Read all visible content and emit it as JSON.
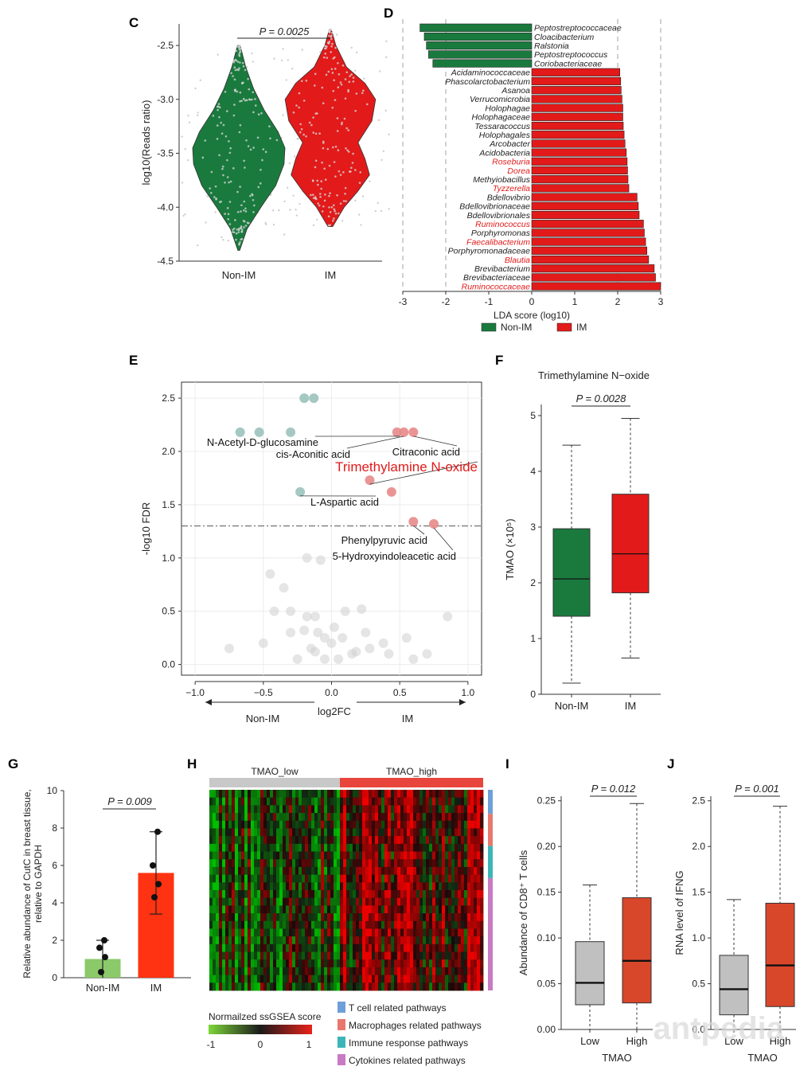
{
  "chart_data": [
    {
      "id": "C",
      "panel": "C",
      "type": "violin",
      "ylabel": "log10(Reads ratio)",
      "categories": [
        "Non-IM",
        "IM"
      ],
      "ylim": [
        -4.5,
        -2.3
      ],
      "yticks": [
        -2.5,
        -3.0,
        -3.5,
        -4.0,
        -4.5
      ],
      "ytick_labels": [
        "-2.5",
        "-3.0",
        "-3.5",
        "-4.0",
        "-4.5"
      ],
      "groups": [
        {
          "name": "Non-IM",
          "color": "#1a7a3e",
          "min": -4.4,
          "max": -2.5,
          "profile": [
            [
              -4.4,
              0.02
            ],
            [
              -4.2,
              0.18
            ],
            [
              -4.0,
              0.48
            ],
            [
              -3.8,
              0.8
            ],
            [
              -3.6,
              0.98
            ],
            [
              -3.45,
              1.0
            ],
            [
              -3.3,
              0.85
            ],
            [
              -3.1,
              0.55
            ],
            [
              -2.9,
              0.32
            ],
            [
              -2.7,
              0.15
            ],
            [
              -2.5,
              0.03
            ]
          ]
        },
        {
          "name": "IM",
          "color": "#e21a1a",
          "min": -4.18,
          "max": -2.35,
          "profile": [
            [
              -4.18,
              0.05
            ],
            [
              -4.0,
              0.3
            ],
            [
              -3.85,
              0.6
            ],
            [
              -3.7,
              0.85
            ],
            [
              -3.55,
              0.75
            ],
            [
              -3.4,
              0.6
            ],
            [
              -3.2,
              0.9
            ],
            [
              -3.0,
              0.98
            ],
            [
              -2.85,
              0.75
            ],
            [
              -2.7,
              0.35
            ],
            [
              -2.5,
              0.12
            ],
            [
              -2.35,
              0.02
            ]
          ]
        }
      ],
      "p_label": "P = 0.0025"
    },
    {
      "id": "D",
      "panel": "D",
      "type": "bar",
      "orientation": "horizontal",
      "xlabel": "LDA score (log10)",
      "xlim": [
        -3,
        3
      ],
      "xticks": [
        -3,
        -2,
        -1,
        0,
        1,
        2,
        3
      ],
      "categories": [
        "Peptostreptococcaceae",
        "Cloacibacterium",
        "Ralstonia",
        "Peptostreptococcus",
        "Coriobacteriaceae",
        "Acidaminococcaceae",
        "Phascolarctobacterium",
        "Asanoa",
        "Verrucomicrobia",
        "Holophagae",
        "Holophagaceae",
        "Tessaracoccus",
        "Holophagales",
        "Arcobacter",
        "Acidobacteria",
        "Roseburia",
        "Dorea",
        "Methyiobacillus",
        "Tyzzerella",
        "Bdellovibrio",
        "Bdellovibrionaceae",
        "Bdellovibrionales",
        "Ruminococcus",
        "Porphyromonas",
        "Faecalibacterium",
        "Porphyromonadaceae",
        "Blautia",
        "Brevibacterium",
        "Brevibacteriaceae",
        "Ruminococcaceae"
      ],
      "values": [
        -2.6,
        -2.5,
        -2.45,
        -2.4,
        -2.3,
        2.05,
        2.07,
        2.08,
        2.1,
        2.12,
        2.12,
        2.13,
        2.15,
        2.17,
        2.2,
        2.22,
        2.23,
        2.24,
        2.26,
        2.45,
        2.48,
        2.5,
        2.6,
        2.62,
        2.65,
        2.68,
        2.72,
        2.85,
        2.88,
        3.0
      ],
      "highlight_red_labels": [
        "Roseburia",
        "Dorea",
        "Tyzzerella",
        "Ruminococcus",
        "Faecalibacterium",
        "Blautia",
        "Ruminococcaceae"
      ],
      "legend": [
        {
          "name": "Non-IM",
          "color": "#1a7a3e"
        },
        {
          "name": "IM",
          "color": "#e21a1a"
        }
      ]
    },
    {
      "id": "E",
      "panel": "E",
      "type": "scatter",
      "xlabel": "log2FC",
      "ylabel": "-log10 FDR",
      "xlim": [
        -1.1,
        1.1
      ],
      "ylim": [
        -0.1,
        2.65
      ],
      "xticks": [
        -1.0,
        -0.5,
        0.0,
        0.5,
        1.0
      ],
      "xtick_labels": [
        "−1.0",
        "−0.5",
        "0.0",
        "0.5",
        "1.0"
      ],
      "yticks": [
        0.0,
        0.5,
        1.0,
        1.5,
        2.0,
        2.5
      ],
      "ytick_labels": [
        "0.0",
        "0.5",
        "1.0",
        "1.5",
        "2.0",
        "2.5"
      ],
      "threshold": 1.3,
      "direction_labels": [
        "Non-IM",
        "IM"
      ],
      "blue_points": [
        [
          -0.2,
          2.5
        ],
        [
          -0.13,
          2.5
        ],
        [
          -0.67,
          2.18
        ],
        [
          -0.53,
          2.18
        ],
        [
          -0.3,
          2.18
        ],
        [
          -0.23,
          1.62
        ]
      ],
      "red_points": [
        [
          0.48,
          2.18
        ],
        [
          0.53,
          2.18
        ],
        [
          0.6,
          2.18
        ],
        [
          0.28,
          1.73
        ],
        [
          0.44,
          1.62
        ],
        [
          0.6,
          1.34
        ],
        [
          0.75,
          1.32
        ]
      ],
      "grey_points": [
        [
          -0.18,
          1.0
        ],
        [
          -0.45,
          0.85
        ],
        [
          -0.08,
          0.98
        ],
        [
          -0.35,
          0.72
        ],
        [
          -0.42,
          0.5
        ],
        [
          -0.3,
          0.5
        ],
        [
          -0.18,
          0.45
        ],
        [
          -0.12,
          0.45
        ],
        [
          0.1,
          0.5
        ],
        [
          0.22,
          0.52
        ],
        [
          -0.3,
          0.3
        ],
        [
          -0.2,
          0.32
        ],
        [
          -0.1,
          0.3
        ],
        [
          -0.05,
          0.25
        ],
        [
          0.0,
          0.2
        ],
        [
          0.08,
          0.25
        ],
        [
          0.15,
          0.1
        ],
        [
          0.25,
          0.3
        ],
        [
          0.28,
          0.15
        ],
        [
          -0.5,
          0.2
        ],
        [
          -0.15,
          0.15
        ],
        [
          -0.25,
          0.05
        ],
        [
          -0.05,
          0.05
        ],
        [
          0.05,
          0.05
        ],
        [
          0.42,
          0.1
        ],
        [
          -0.75,
          0.15
        ],
        [
          0.55,
          0.25
        ],
        [
          0.6,
          0.05
        ],
        [
          0.7,
          0.1
        ],
        [
          0.38,
          0.2
        ],
        [
          0.85,
          0.45
        ],
        [
          0.18,
          0.12
        ],
        [
          -0.12,
          0.12
        ],
        [
          0.02,
          0.35
        ]
      ],
      "annotations": [
        {
          "text": "N-Acetyl-D-glucosamine",
          "x": 0.5,
          "y": 2.18,
          "color": "#111"
        },
        {
          "text": "cis-Aconitic acid",
          "x": 0.53,
          "y": 2.18,
          "color": "#111"
        },
        {
          "text": "Citraconic acid",
          "x": 0.6,
          "y": 2.18,
          "color": "#111"
        },
        {
          "text": "Trimethylamine N-oxide",
          "x": 0.28,
          "y": 1.73,
          "color": "#e21a1a"
        },
        {
          "text": "L-Aspartic acid",
          "x": -0.23,
          "y": 1.62,
          "color": "#111"
        },
        {
          "text": "Phenylpyruvic acid",
          "x": 0.6,
          "y": 1.34,
          "color": "#111"
        },
        {
          "text": "5-Hydroxyindoleacetic acid",
          "x": 0.75,
          "y": 1.32,
          "color": "#111"
        }
      ]
    },
    {
      "id": "F",
      "panel": "F",
      "type": "box",
      "title": "Trimethylamine N−oxide",
      "ylabel": "TMAO (×10⁵)",
      "ylim": [
        0,
        5.2
      ],
      "yticks": [
        0,
        1,
        2,
        3,
        4,
        5
      ],
      "ytick_labels": [
        "0",
        "1",
        "2",
        "3",
        "4",
        "5"
      ],
      "categories": [
        "Non-IM",
        "IM"
      ],
      "boxes": [
        {
          "name": "Non-IM",
          "min": 0.2,
          "q1": 1.4,
          "median": 2.07,
          "q3": 2.97,
          "max": 4.47,
          "color": "#1a7a3e"
        },
        {
          "name": "IM",
          "min": 0.65,
          "q1": 1.82,
          "median": 2.52,
          "q3": 3.59,
          "max": 4.95,
          "color": "#e21a1a"
        }
      ],
      "p_label": "P = 0.0028"
    },
    {
      "id": "G",
      "panel": "G",
      "type": "bar",
      "ylabel_line1": "Relative abundance of CutC in breast tissue,",
      "ylabel_line2": "relative to GAPDH",
      "ylim": [
        0,
        10
      ],
      "yticks": [
        0,
        2,
        4,
        6,
        8,
        10
      ],
      "ytick_labels": [
        "0",
        "2",
        "4",
        "6",
        "8",
        "10"
      ],
      "categories": [
        "Non-IM",
        "IM"
      ],
      "values": [
        1.0,
        5.6
      ],
      "errors": [
        1.0,
        2.2
      ],
      "colors": [
        "#8bc96a",
        "#ff3311"
      ],
      "points": [
        [
          0.3,
          1.1,
          1.6,
          2.0
        ],
        [
          4.3,
          5.0,
          6.0,
          7.8
        ]
      ],
      "p_label": "P = 0.009"
    },
    {
      "id": "H",
      "panel": "H",
      "type": "heatmap",
      "groups": [
        "TMAO_low",
        "TMAO_high"
      ],
      "group_colors": [
        "#c8c8c8",
        "#e8453c"
      ],
      "colorbar_title": "Normailzed ssGSEA score",
      "colorbar_ticks": [
        "-1",
        "0",
        "1"
      ],
      "pathway_legend": [
        {
          "name": "T cell related pathways",
          "color": "#6f9fd8"
        },
        {
          "name": "Macrophages related pathways",
          "color": "#e8786e"
        },
        {
          "name": "Immune response pathways",
          "color": "#3db5b8"
        },
        {
          "name": "Cytokines related pathways",
          "color": "#c97ac4"
        }
      ]
    },
    {
      "id": "I",
      "panel": "I",
      "type": "box",
      "ylabel": "Abundance of CD8⁺ T cells",
      "xlabel": "TMAO",
      "ylim": [
        0,
        0.255
      ],
      "yticks": [
        0.0,
        0.05,
        0.1,
        0.15,
        0.2,
        0.25
      ],
      "ytick_labels": [
        "0.00",
        "0.05",
        "0.10",
        "0.15",
        "0.20",
        "0.25"
      ],
      "categories": [
        "Low",
        "High"
      ],
      "boxes": [
        {
          "name": "Low",
          "min": 0.0,
          "q1": 0.027,
          "median": 0.051,
          "q3": 0.096,
          "max": 0.158,
          "color": "#c0c0c0"
        },
        {
          "name": "High",
          "min": 0.0,
          "q1": 0.029,
          "median": 0.075,
          "q3": 0.144,
          "max": 0.247,
          "color": "#d9472b"
        }
      ],
      "p_label": "P = 0.012"
    },
    {
      "id": "J",
      "panel": "J",
      "type": "box",
      "ylabel": "RNA level of IFNG",
      "xlabel": "TMAO",
      "ylim": [
        0,
        2.55
      ],
      "yticks": [
        0.0,
        0.5,
        1.0,
        1.5,
        2.0,
        2.5
      ],
      "ytick_labels": [
        "0.0",
        "0.5",
        "1.0",
        "1.5",
        "2.0",
        "2.5"
      ],
      "categories": [
        "Low",
        "High"
      ],
      "boxes": [
        {
          "name": "Low",
          "min": 0.0,
          "q1": 0.16,
          "median": 0.44,
          "q3": 0.81,
          "max": 1.42,
          "color": "#c0c0c0"
        },
        {
          "name": "High",
          "min": 0.0,
          "q1": 0.25,
          "median": 0.7,
          "q3": 1.38,
          "max": 2.44,
          "color": "#d9472b"
        }
      ],
      "p_label": "P = 0.001"
    }
  ]
}
